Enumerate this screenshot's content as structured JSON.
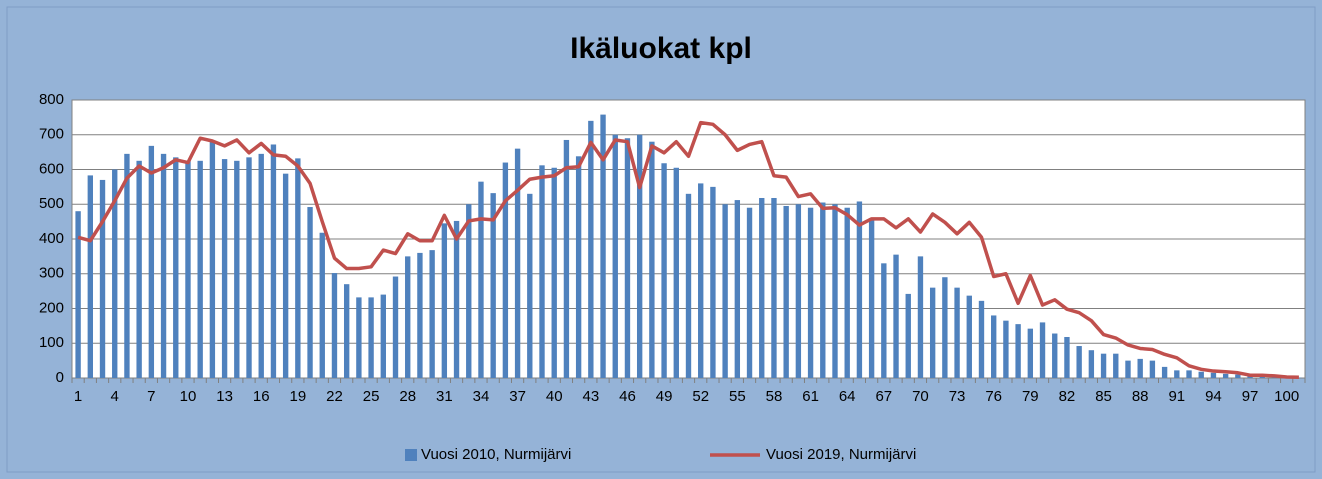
{
  "chart_data": {
    "type": "bar_line",
    "title": "Ikäluokat kpl",
    "categories": [
      1,
      null,
      null,
      4,
      null,
      null,
      7,
      null,
      null,
      10,
      null,
      null,
      13,
      null,
      null,
      16,
      null,
      null,
      19,
      null,
      null,
      22,
      null,
      null,
      25,
      null,
      null,
      28,
      null,
      null,
      31,
      null,
      null,
      34,
      null,
      null,
      37,
      null,
      null,
      40,
      null,
      null,
      43,
      null,
      null,
      46,
      null,
      null,
      49,
      null,
      null,
      52,
      null,
      null,
      55,
      null,
      null,
      58,
      null,
      null,
      61,
      null,
      null,
      64,
      null,
      null,
      67,
      null,
      null,
      70,
      null,
      null,
      73,
      null,
      null,
      76,
      null,
      null,
      79,
      null,
      null,
      82,
      null,
      null,
      85,
      null,
      null,
      88,
      null,
      null,
      91,
      null,
      null,
      94,
      null,
      null,
      97,
      null,
      null,
      100,
      null
    ],
    "series": [
      {
        "name": "Vuosi 2010, Nurmijärvi",
        "type": "bar",
        "color": "#4f81bd",
        "values": [
          480,
          583,
          570,
          600,
          645,
          625,
          668,
          645,
          635,
          625,
          625,
          680,
          630,
          625,
          635,
          645,
          672,
          588,
          632,
          492,
          418,
          302,
          270,
          232,
          232,
          240,
          292,
          350,
          360,
          368,
          445,
          452,
          500,
          565,
          532,
          620,
          660,
          530,
          612,
          605,
          685,
          638,
          740,
          758,
          700,
          690,
          700,
          680,
          618,
          605,
          530,
          560,
          550,
          500,
          512,
          490,
          518,
          518,
          495,
          500,
          490,
          505,
          500,
          490,
          508,
          460,
          330,
          355,
          242,
          350,
          260,
          290,
          260,
          237,
          222,
          180,
          165,
          155,
          142,
          160,
          128,
          118,
          92,
          80,
          70,
          70,
          50,
          55,
          50,
          32,
          22,
          22,
          18,
          15,
          12,
          10,
          7,
          5,
          3,
          2,
          1
        ]
      },
      {
        "name": "Vuosi 2019, Nurmijärvi",
        "type": "line",
        "color": "#c0504d",
        "values": [
          405,
          395,
          450,
          510,
          575,
          610,
          590,
          605,
          628,
          620,
          690,
          682,
          668,
          685,
          648,
          675,
          642,
          638,
          610,
          560,
          450,
          345,
          315,
          315,
          320,
          368,
          358,
          415,
          395,
          395,
          468,
          400,
          452,
          458,
          455,
          510,
          540,
          572,
          578,
          582,
          605,
          608,
          678,
          628,
          685,
          680,
          548,
          668,
          648,
          680,
          638,
          735,
          730,
          700,
          655,
          672,
          680,
          582,
          578,
          522,
          530,
          488,
          490,
          470,
          440,
          458,
          458,
          432,
          458,
          420,
          472,
          448,
          415,
          448,
          405,
          292,
          300,
          215,
          295,
          210,
          225,
          198,
          188,
          165,
          125,
          115,
          95,
          85,
          82,
          68,
          58,
          35,
          25,
          20,
          18,
          15,
          8,
          8,
          6,
          3,
          2
        ]
      }
    ],
    "ylim": [
      0,
      800
    ],
    "yticks": [
      0,
      100,
      200,
      300,
      400,
      500,
      600,
      700,
      800
    ],
    "grid": true,
    "legend": "bottom"
  }
}
